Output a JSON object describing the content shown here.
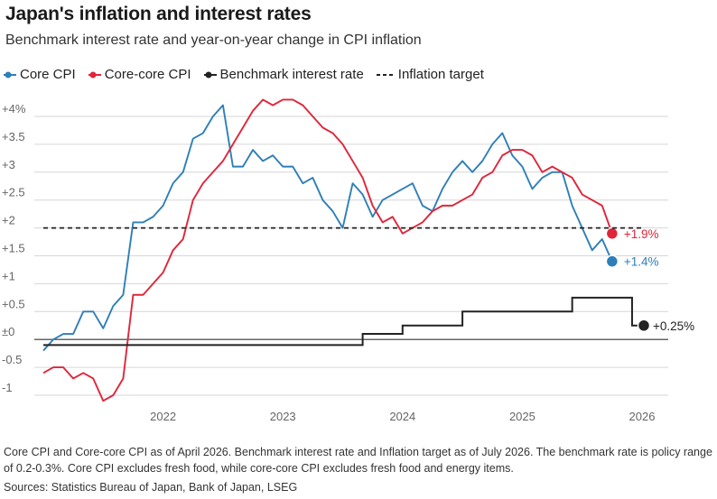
{
  "header": {
    "title": "Japan's inflation and interest rates",
    "subtitle": "Benchmark interest rate and year-on-year change in CPI inflation"
  },
  "legend": [
    {
      "label": "Core CPI",
      "color": "#2e7fb8",
      "marker": "line-dot"
    },
    {
      "label": "Core-core CPI",
      "color": "#e0253a",
      "marker": "line-dot"
    },
    {
      "label": "Benchmark interest rate",
      "color": "#222222",
      "marker": "line-dot"
    },
    {
      "label": "Inflation target",
      "color": "#222222",
      "marker": "dashed"
    }
  ],
  "footnote": "Core CPI and Core-core CPI as of April 2026. Benchmark interest rate and Inflation target as of July 2026. The benchmark rate is policy range of 0.2-0.3%. Core CPI excludes fresh food, while core-core CPI excludes fresh food and energy items.",
  "sources": "Sources: Statistics Bureau of Japan, Bank of Japan, LSEG",
  "chart_data": {
    "type": "line",
    "x_start": "2021-07",
    "x_axis": {
      "ticks": [
        "2022",
        "2023",
        "2024",
        "2025",
        "2026"
      ]
    },
    "y_axis": {
      "range": [
        -1,
        4.2
      ],
      "ticks": [
        {
          "value": 4,
          "label": "+4%"
        },
        {
          "value": 3.5,
          "label": "+3.5"
        },
        {
          "value": 3,
          "label": "+3"
        },
        {
          "value": 2.5,
          "label": "+2.5"
        },
        {
          "value": 2,
          "label": "+2"
        },
        {
          "value": 1.5,
          "label": "+1.5"
        },
        {
          "value": 1,
          "label": "+1"
        },
        {
          "value": 0.5,
          "label": "+0.5"
        },
        {
          "value": 0,
          "label": "±0"
        },
        {
          "value": -0.5,
          "label": "-0.5"
        },
        {
          "value": -1,
          "label": "-1"
        }
      ]
    },
    "grid": true,
    "series": [
      {
        "name": "Core CPI",
        "color": "#2e7fb8",
        "start": "2021-07",
        "values": [
          -0.2,
          0.0,
          0.1,
          0.1,
          0.5,
          0.5,
          0.2,
          0.6,
          0.8,
          2.1,
          2.1,
          2.2,
          2.4,
          2.8,
          3.0,
          3.6,
          3.7,
          4.0,
          4.2,
          3.1,
          3.1,
          3.4,
          3.2,
          3.3,
          3.1,
          3.1,
          2.8,
          2.9,
          2.5,
          2.3,
          2.0,
          2.8,
          2.6,
          2.2,
          2.5,
          2.6,
          2.7,
          2.8,
          2.4,
          2.3,
          2.7,
          3.0,
          3.2,
          3.0,
          3.2,
          3.5,
          3.7,
          3.3,
          3.1,
          2.7,
          2.9,
          3.0,
          3.0,
          2.4,
          2.0,
          1.6,
          1.8,
          1.4
        ],
        "end_label": "+1.4%"
      },
      {
        "name": "Core-core CPI",
        "color": "#e0253a",
        "start": "2021-07",
        "values": [
          -0.6,
          -0.5,
          -0.5,
          -0.7,
          -0.6,
          -0.7,
          -1.1,
          -1.0,
          -0.7,
          0.8,
          0.8,
          1.0,
          1.2,
          1.6,
          1.8,
          2.5,
          2.8,
          3.0,
          3.2,
          3.5,
          3.8,
          4.1,
          4.3,
          4.2,
          4.3,
          4.3,
          4.2,
          4.0,
          3.8,
          3.7,
          3.5,
          3.2,
          2.9,
          2.4,
          2.1,
          2.2,
          1.9,
          2.0,
          2.1,
          2.3,
          2.4,
          2.4,
          2.5,
          2.6,
          2.9,
          3.0,
          3.3,
          3.4,
          3.4,
          3.3,
          3.0,
          3.1,
          3.0,
          2.9,
          2.6,
          2.5,
          2.4,
          1.9
        ],
        "end_label": "+1.9%"
      },
      {
        "name": "Benchmark interest rate",
        "color": "#222222",
        "type": "step",
        "steps": [
          {
            "from": "2021-07",
            "value": -0.1
          },
          {
            "from": "2024-03",
            "value": 0.1
          },
          {
            "from": "2024-07",
            "value": 0.25
          },
          {
            "from": "2025-01",
            "value": 0.5
          },
          {
            "from": "2025-12",
            "value": 0.75
          },
          {
            "from": "2026-06",
            "value": 0.25
          }
        ],
        "end": "2026-07",
        "end_label": "+0.25%"
      },
      {
        "name": "Inflation target",
        "color": "#222222",
        "type": "hline",
        "value": 2,
        "from": "2021-07",
        "to": "2026-07"
      }
    ]
  }
}
